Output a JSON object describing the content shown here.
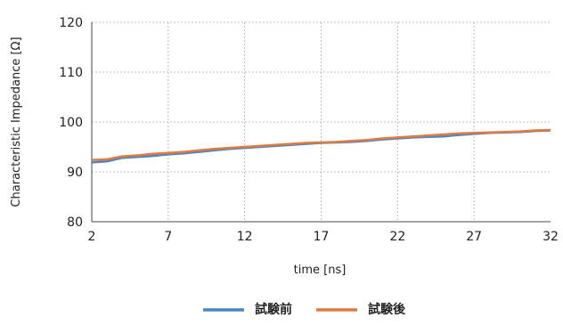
{
  "chart_data": {
    "type": "line",
    "title": "",
    "xlabel": "time [ns]",
    "ylabel": "Characteristic Impedance [Ω]",
    "xlim": [
      2,
      32
    ],
    "ylim": [
      80,
      120
    ],
    "x_ticks": [
      2,
      7,
      12,
      17,
      22,
      27,
      32
    ],
    "y_ticks": [
      80,
      90,
      100,
      110,
      120
    ],
    "grid": "dotted",
    "legend_position": "bottom",
    "series": [
      {
        "name": "試験前",
        "color": "#4a86c5",
        "x": [
          2,
          3,
          4,
          5,
          6,
          7,
          8,
          9,
          10,
          11,
          12,
          13,
          14,
          15,
          16,
          17,
          18,
          19,
          20,
          21,
          22,
          23,
          24,
          25,
          26,
          27,
          28,
          29,
          30,
          31,
          32
        ],
        "y": [
          91.9,
          92.1,
          92.8,
          93.0,
          93.2,
          93.5,
          93.7,
          94.0,
          94.3,
          94.6,
          94.8,
          95.0,
          95.2,
          95.4,
          95.6,
          95.8,
          95.9,
          96.0,
          96.2,
          96.5,
          96.7,
          96.9,
          97.0,
          97.1,
          97.4,
          97.6,
          97.8,
          97.9,
          98.0,
          98.2,
          98.3
        ]
      },
      {
        "name": "試験後",
        "color": "#e07a3f",
        "x": [
          2,
          3,
          4,
          5,
          6,
          7,
          8,
          9,
          10,
          11,
          12,
          13,
          14,
          15,
          16,
          17,
          18,
          19,
          20,
          21,
          22,
          23,
          24,
          25,
          26,
          27,
          28,
          29,
          30,
          31,
          32
        ],
        "y": [
          92.4,
          92.5,
          93.1,
          93.3,
          93.6,
          93.8,
          94.0,
          94.3,
          94.6,
          94.8,
          95.0,
          95.2,
          95.4,
          95.6,
          95.8,
          95.9,
          96.0,
          96.2,
          96.4,
          96.7,
          96.9,
          97.1,
          97.3,
          97.5,
          97.7,
          97.8,
          97.9,
          98.0,
          98.1,
          98.3,
          98.4
        ]
      }
    ]
  }
}
